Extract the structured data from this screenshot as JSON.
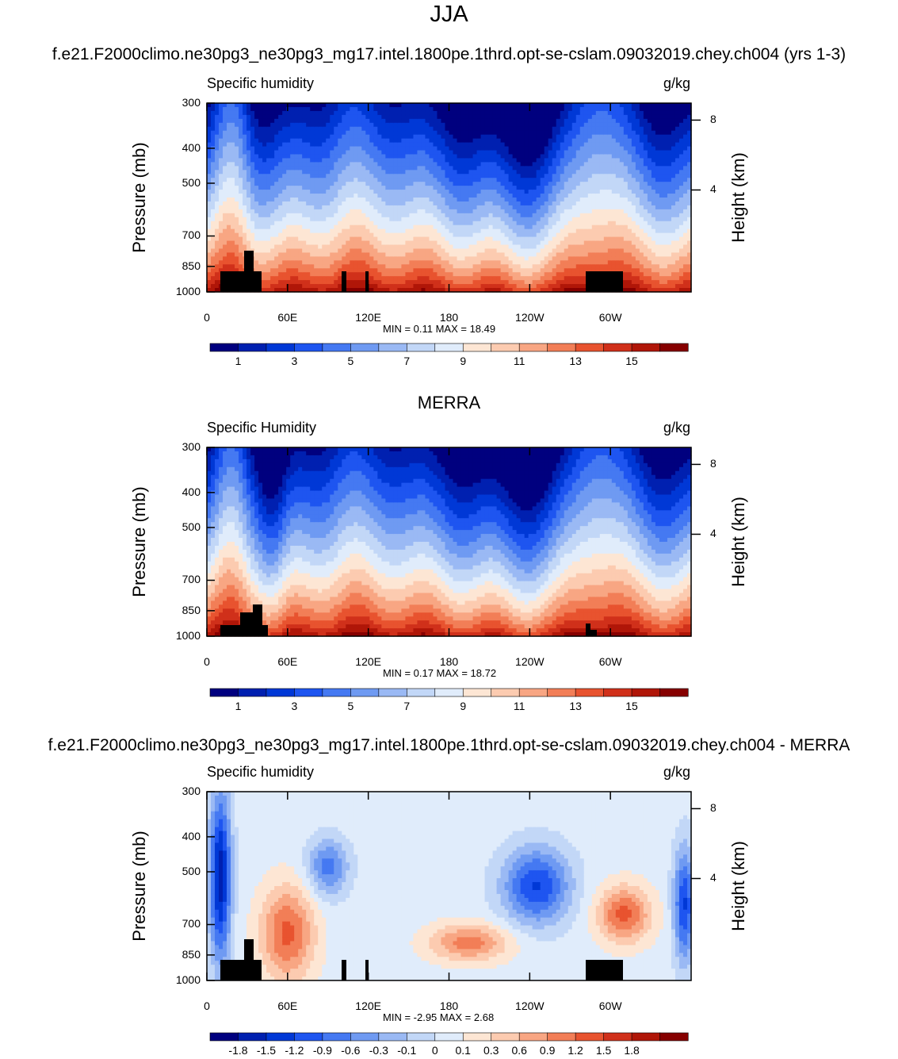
{
  "figure": {
    "title": "JJA"
  },
  "chart_data": [
    {
      "type": "heatmap",
      "panel_title": "f.e21.F2000climo.ne30pg3_ne30pg3_mg17.intel.1800pe.1thrd.opt-se-cslam.09032019.chey.ch004 (yrs 1-3)",
      "left_label": "Specific humidity",
      "right_label": "g/kg",
      "ylabel": "Pressure (mb)",
      "y2label": "Height (km)",
      "x_ticks": [
        "0",
        "60E",
        "120E",
        "180",
        "120W",
        "60W"
      ],
      "y_ticks": [
        "300",
        "400",
        "500",
        "700",
        "850",
        "1000"
      ],
      "y2_ticks": [
        "8",
        "4"
      ],
      "minmax_text": "MIN =   0.11  MAX =  18.49",
      "min": 0.11,
      "max": 18.49,
      "colorbar_labels": [
        "1",
        "3",
        "5",
        "7",
        "9",
        "11",
        "13",
        "15"
      ],
      "colorbar_colors": [
        "#00007f",
        "#0020b0",
        "#0038d6",
        "#1e55f0",
        "#4579f2",
        "#6f9af2",
        "#9ab9f4",
        "#c2d7f7",
        "#e0ecfb",
        "#fde6d4",
        "#fccbb0",
        "#f8a683",
        "#f27e57",
        "#e8532f",
        "#d0301a",
        "#b01608",
        "#860000"
      ]
    },
    {
      "type": "heatmap",
      "panel_title": "MERRA",
      "left_label": "Specific Humidity",
      "right_label": "g/kg",
      "ylabel": "Pressure (mb)",
      "y2label": "Height (km)",
      "x_ticks": [
        "0",
        "60E",
        "120E",
        "180",
        "120W",
        "60W"
      ],
      "y_ticks": [
        "300",
        "400",
        "500",
        "700",
        "850",
        "1000"
      ],
      "y2_ticks": [
        "8",
        "4"
      ],
      "minmax_text": "MIN =   0.17  MAX =  18.72",
      "min": 0.17,
      "max": 18.72,
      "colorbar_labels": [
        "1",
        "3",
        "5",
        "7",
        "9",
        "11",
        "13",
        "15"
      ],
      "colorbar_colors": [
        "#00007f",
        "#0020b0",
        "#0038d6",
        "#1e55f0",
        "#4579f2",
        "#6f9af2",
        "#9ab9f4",
        "#c2d7f7",
        "#e0ecfb",
        "#fde6d4",
        "#fccbb0",
        "#f8a683",
        "#f27e57",
        "#e8532f",
        "#d0301a",
        "#b01608",
        "#860000"
      ]
    },
    {
      "type": "heatmap",
      "panel_title": "f.e21.F2000climo.ne30pg3_ne30pg3_mg17.intel.1800pe.1thrd.opt-se-cslam.09032019.chey.ch004 - MERRA",
      "left_label": "Specific humidity",
      "right_label": "g/kg",
      "ylabel": "Pressure (mb)",
      "y2label": "Height (km)",
      "x_ticks": [
        "0",
        "60E",
        "120E",
        "180",
        "120W",
        "60W"
      ],
      "y_ticks": [
        "300",
        "400",
        "500",
        "700",
        "850",
        "1000"
      ],
      "y2_ticks": [
        "8",
        "4"
      ],
      "minmax_text": "MIN =  -2.95  MAX =   2.68",
      "min": -2.95,
      "max": 2.68,
      "colorbar_labels": [
        "-1.8",
        "-1.5",
        "-1.2",
        "-0.9",
        "-0.6",
        "-0.3",
        "-0.1",
        "0",
        "0.1",
        "0.3",
        "0.6",
        "0.9",
        "1.2",
        "1.5",
        "1.8"
      ],
      "colorbar_colors": [
        "#00007f",
        "#0020b0",
        "#0038d6",
        "#1e55f0",
        "#4579f2",
        "#6f9af2",
        "#9ab9f4",
        "#c2d7f7",
        "#e0ecfb",
        "#fde6d4",
        "#fccbb0",
        "#f8a683",
        "#f27e57",
        "#e8532f",
        "#d0301a",
        "#b01608",
        "#860000"
      ]
    }
  ]
}
